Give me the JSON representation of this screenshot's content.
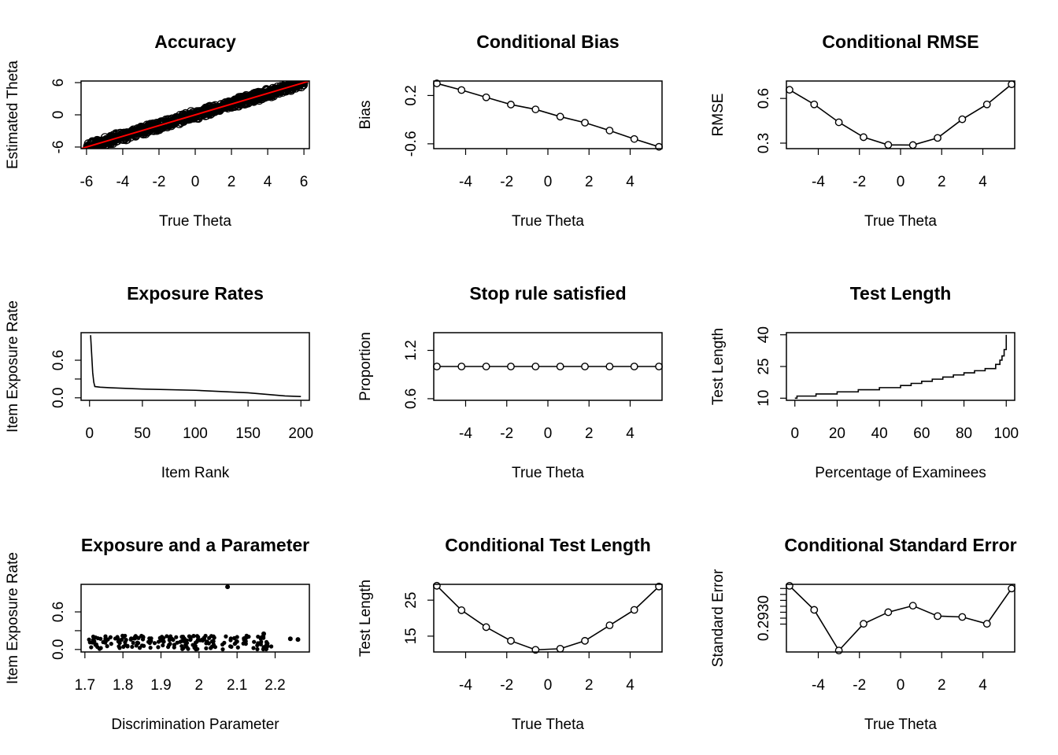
{
  "chart_data": [
    {
      "type": "scatter",
      "title": "Accuracy",
      "xlabel": "True Theta",
      "ylabel": "Estimated Theta",
      "xlim": [
        -6.3,
        6.3
      ],
      "ylim": [
        -6.3,
        6.3
      ],
      "xticks": [
        -6,
        -4,
        -2,
        0,
        2,
        4,
        6
      ],
      "yticks": [
        -6,
        0,
        6
      ],
      "reference_line": {
        "slope": 1,
        "intercept": 0,
        "color": "#ff0000"
      },
      "point_cloud": {
        "x_from": -6,
        "x_to": 6,
        "band_halfwidth": 0.9,
        "n": 900
      }
    },
    {
      "type": "line",
      "title": "Conditional Bias",
      "xlabel": "True Theta",
      "ylabel": "Bias",
      "xlim": [
        -5.55,
        5.55
      ],
      "ylim": [
        -0.68,
        0.44
      ],
      "xticks": [
        -4,
        -2,
        0,
        2,
        4
      ],
      "yticks": [
        -0.6,
        0.2
      ],
      "x": [
        -5.4,
        -4.2,
        -3.0,
        -1.8,
        -0.6,
        0.6,
        1.8,
        3.0,
        4.2,
        5.4
      ],
      "y": [
        0.4,
        0.29,
        0.17,
        0.05,
        -0.03,
        -0.15,
        -0.25,
        -0.38,
        -0.52,
        -0.65
      ],
      "markers": "open-circle"
    },
    {
      "type": "line",
      "title": "Conditional RMSE",
      "xlabel": "True Theta",
      "ylabel": "RMSE",
      "xlim": [
        -5.55,
        5.55
      ],
      "ylim": [
        0.263,
        0.717
      ],
      "xticks": [
        -4,
        -2,
        0,
        2,
        4
      ],
      "yticks": [
        0.3,
        0.6
      ],
      "x": [
        -5.4,
        -4.2,
        -3.0,
        -1.8,
        -0.6,
        0.6,
        1.8,
        3.0,
        4.2,
        5.4
      ],
      "y": [
        0.658,
        0.56,
        0.44,
        0.34,
        0.288,
        0.287,
        0.335,
        0.46,
        0.56,
        0.695
      ],
      "markers": "open-circle"
    },
    {
      "type": "line",
      "title": "Exposure Rates",
      "xlabel": "Item Rank",
      "ylabel": "Item Exposure Rate",
      "xlim": [
        -8,
        208
      ],
      "ylim": [
        -0.04,
        1.04
      ],
      "xticks": [
        0,
        50,
        100,
        150,
        200
      ],
      "yticks": [
        0.0,
        0.6
      ],
      "tick_labels_y": [
        "0.0",
        "0.6"
      ],
      "x": [
        1,
        2,
        3,
        4,
        5,
        10,
        20,
        50,
        100,
        150,
        185,
        200
      ],
      "y": [
        1.0,
        0.7,
        0.4,
        0.25,
        0.18,
        0.17,
        0.16,
        0.14,
        0.12,
        0.08,
        0.03,
        0.02
      ],
      "minor_tick_at": 0.3
    },
    {
      "type": "line",
      "title": "Stop rule satisfied",
      "xlabel": "True Theta",
      "ylabel": "Proportion",
      "xlim": [
        -5.55,
        5.55
      ],
      "ylim": [
        0.58,
        1.42
      ],
      "xticks": [
        -4,
        -2,
        0,
        2,
        4
      ],
      "yticks": [
        0.6,
        1.2
      ],
      "x": [
        -5.4,
        -4.2,
        -3.0,
        -1.8,
        -0.6,
        0.6,
        1.8,
        3.0,
        4.2,
        5.4
      ],
      "y": [
        1,
        1,
        1,
        1,
        1,
        1,
        1,
        1,
        1,
        1
      ],
      "markers": "open-circle"
    },
    {
      "type": "line",
      "title": "Test Length",
      "xlabel": "Percentage of Examinees",
      "ylabel": "Test Length",
      "xlim": [
        -4,
        104
      ],
      "ylim": [
        9,
        41
      ],
      "xticks": [
        0,
        20,
        40,
        60,
        80,
        100
      ],
      "yticks": [
        10,
        25,
        40
      ],
      "x": [
        0,
        1,
        10,
        20,
        30,
        40,
        50,
        55,
        60,
        65,
        70,
        75,
        80,
        85,
        90,
        95,
        97,
        98,
        99,
        100
      ],
      "y": [
        10,
        11,
        12,
        13,
        14,
        15,
        16,
        17,
        18,
        19,
        20,
        21,
        22,
        23,
        24,
        26,
        28,
        30,
        33,
        40
      ]
    },
    {
      "type": "scatter",
      "title": "Exposure and a Parameter",
      "xlabel": "Discrimination Parameter",
      "ylabel": "Item Exposure Rate",
      "xlim": [
        1.69,
        2.29
      ],
      "ylim": [
        -0.04,
        1.04
      ],
      "xticks": [
        1.7,
        1.8,
        1.9,
        2.0,
        2.1,
        2.2
      ],
      "yticks": [
        0.0,
        0.6
      ],
      "tick_labels_y": [
        "0.0",
        "0.6"
      ],
      "minor_tick_at": 0.3,
      "outliers": [
        {
          "x": 2.075,
          "y": 1.0
        },
        {
          "x": 2.24,
          "y": 0.17
        },
        {
          "x": 2.26,
          "y": 0.16
        },
        {
          "x": 2.17,
          "y": 0.25
        }
      ],
      "point_cloud": {
        "x_from": 1.71,
        "x_to": 2.19,
        "y_from": 0.0,
        "y_to": 0.22,
        "n": 200
      }
    },
    {
      "type": "line",
      "title": "Conditional Test Length",
      "xlabel": "True Theta",
      "ylabel": "Test Length",
      "xlim": [
        -5.55,
        5.55
      ],
      "ylim": [
        10.6,
        29.4
      ],
      "xticks": [
        -4,
        -2,
        0,
        2,
        4
      ],
      "yticks": [
        15,
        25
      ],
      "x": [
        -5.4,
        -4.2,
        -3.0,
        -1.8,
        -0.6,
        0.6,
        1.8,
        3.0,
        4.2,
        5.4
      ],
      "y": [
        29.0,
        22.2,
        17.5,
        13.7,
        11.2,
        11.5,
        13.7,
        18.0,
        22.3,
        28.8
      ],
      "markers": "open-circle"
    },
    {
      "type": "line",
      "title": "Conditional Standard Error",
      "xlabel": "True Theta",
      "ylabel": "Standard Error",
      "xlim": [
        -5.55,
        5.55
      ],
      "ylim": [
        0.29186,
        0.29414
      ],
      "xticks": [
        -4,
        -2,
        0,
        2,
        4
      ],
      "yticks": [
        0.293
      ],
      "tick_labels_y": [
        "0.2930"
      ],
      "minor_ticks_y": [
        0.2928,
        0.2932,
        0.2934,
        0.2936,
        0.2938,
        0.294
      ],
      "x": [
        -5.4,
        -4.2,
        -3.0,
        -1.8,
        -0.6,
        0.6,
        1.8,
        3.0,
        4.2,
        5.4
      ],
      "y": [
        0.29409,
        0.29328,
        0.29191,
        0.29281,
        0.2932,
        0.29342,
        0.29307,
        0.29304,
        0.29281,
        0.294
      ],
      "markers": "open-circle"
    }
  ]
}
